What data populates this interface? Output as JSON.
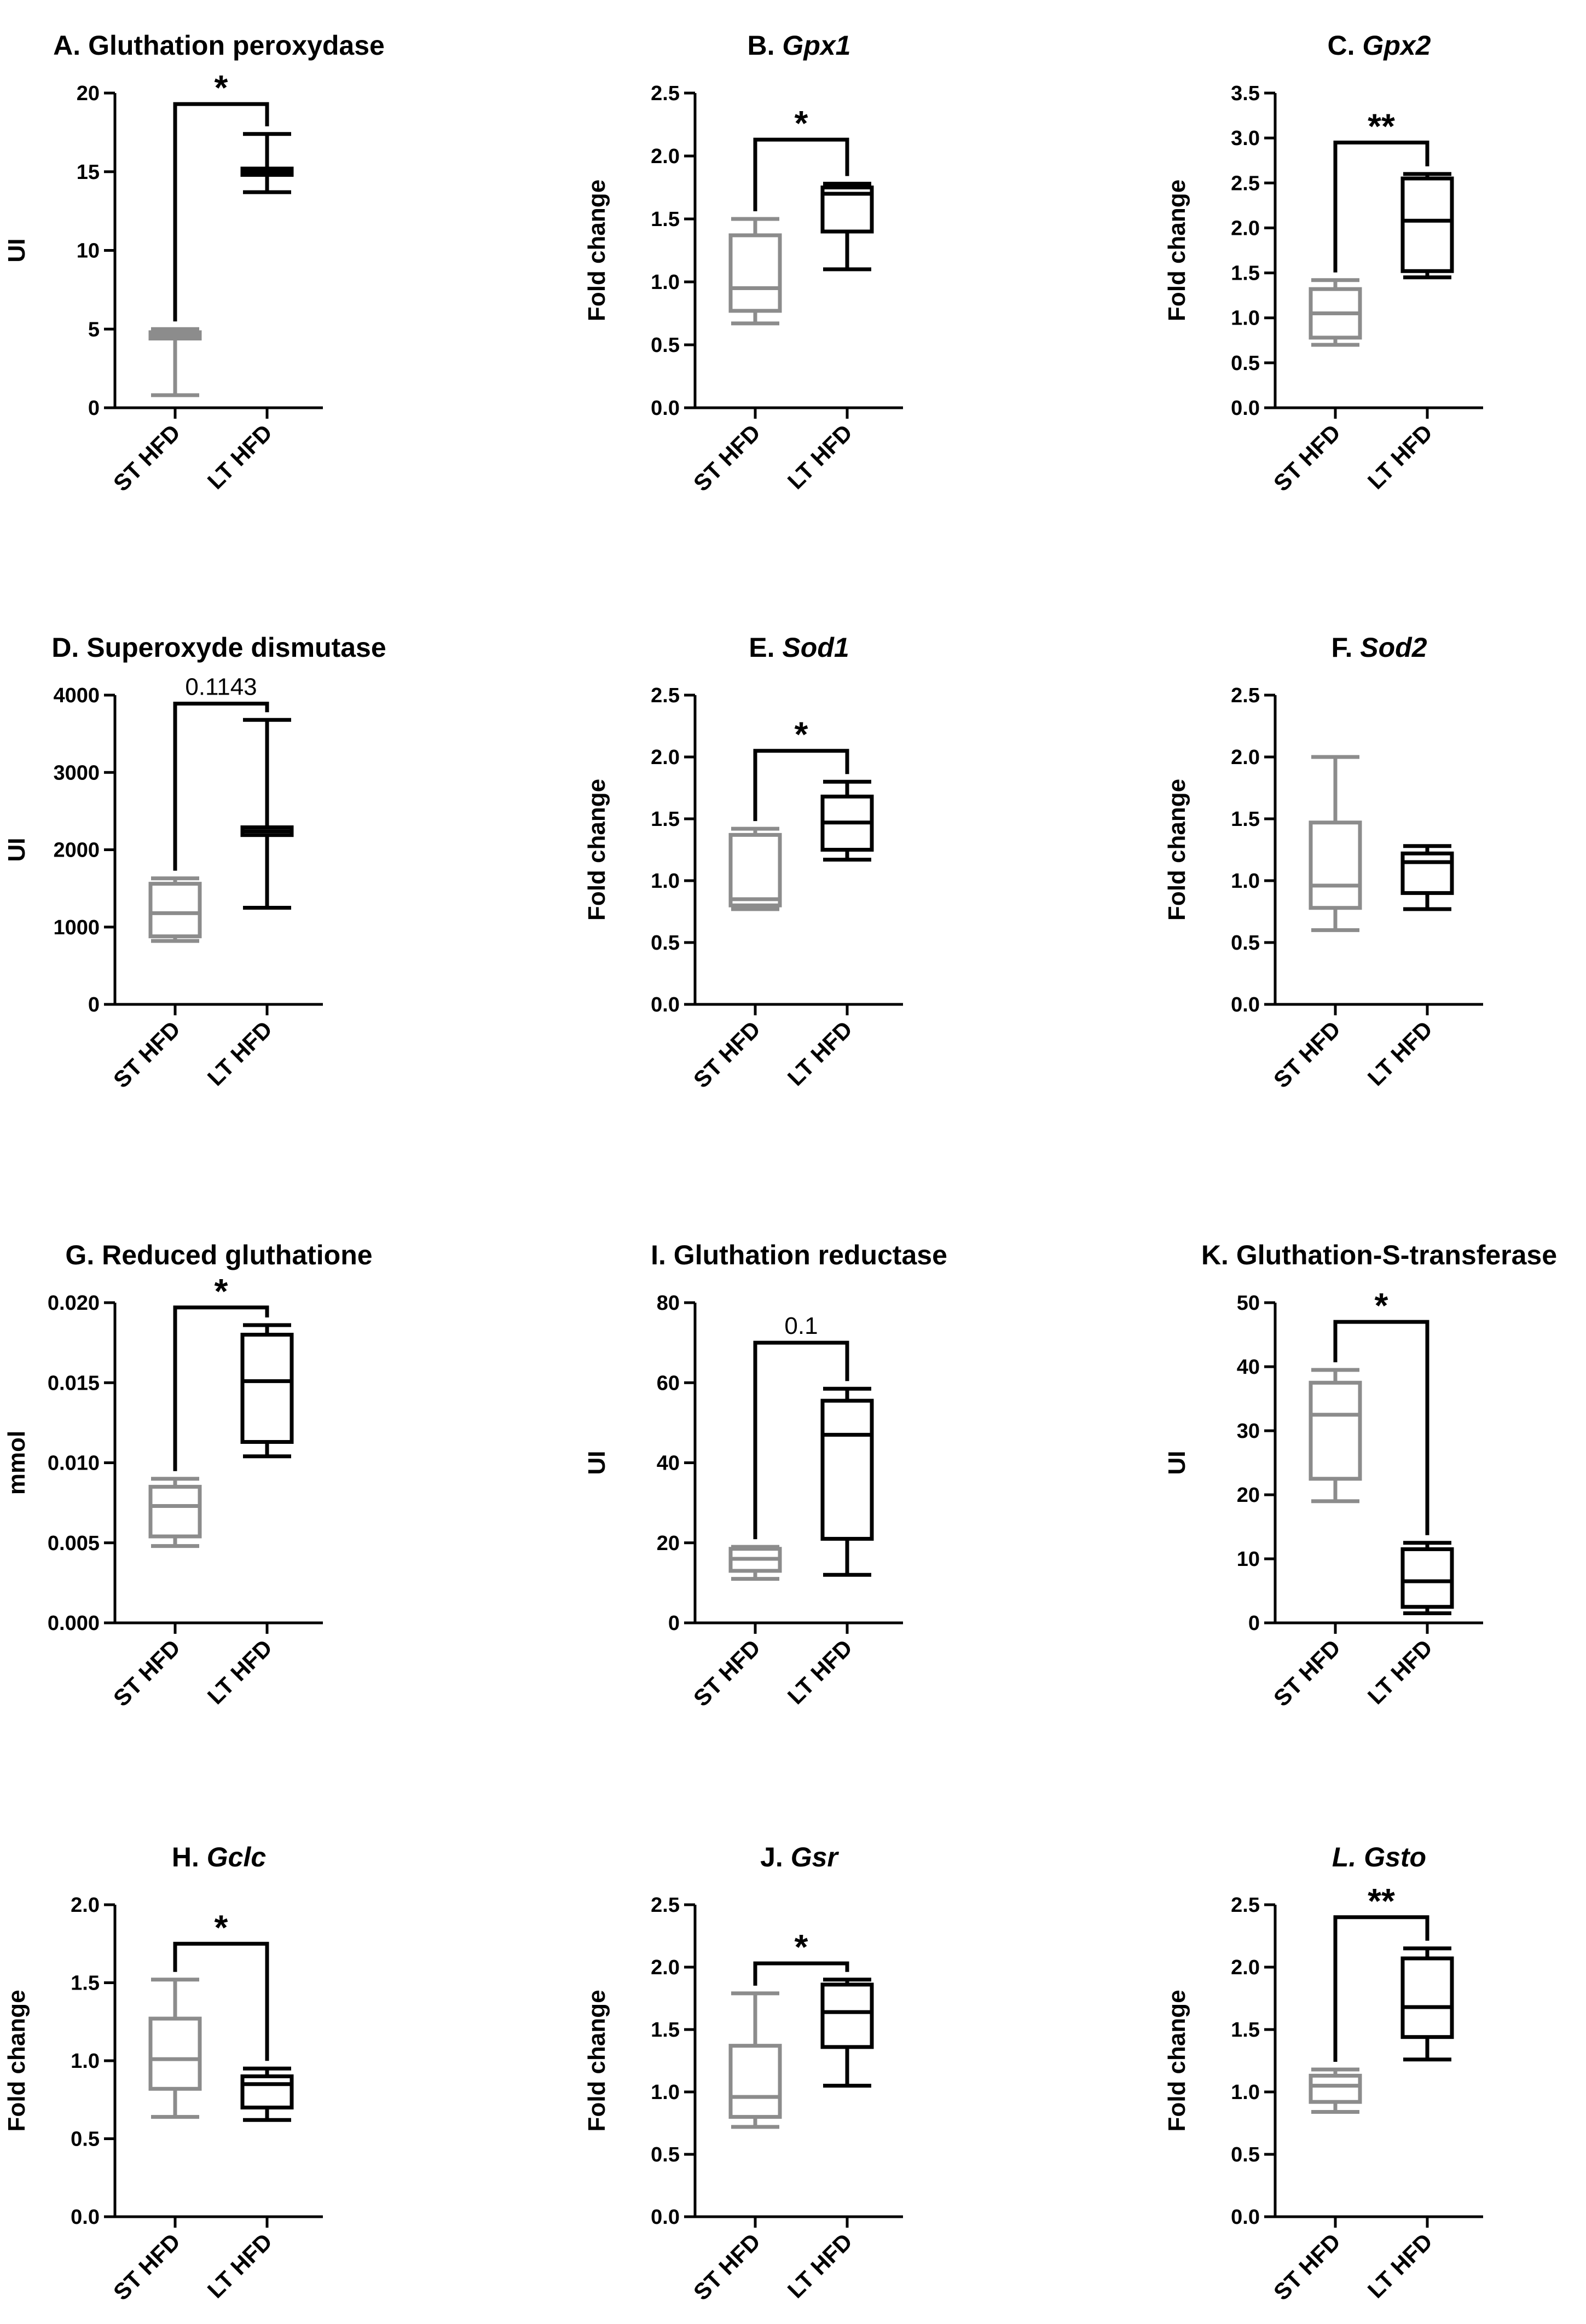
{
  "colors": {
    "st": "#8c8c8c",
    "lt": "#000000",
    "axis": "#000000"
  },
  "chart_data": [
    {
      "type": "box",
      "title_prefix": "A. ",
      "title_main": "Gluthation peroxydase",
      "title_italic": false,
      "ylabel": "UI",
      "ylim": [
        0,
        20
      ],
      "ticks": [
        0,
        5,
        10,
        15,
        20
      ],
      "tick_labels": [
        "0",
        "5",
        "10",
        "15",
        "20"
      ],
      "categories": [
        "ST HFD",
        "LT HFD"
      ],
      "boxes": [
        {
          "name": "ST HFD",
          "min": 0.8,
          "q1": 4.4,
          "median": 4.6,
          "q3": 4.8,
          "max": 5.0
        },
        {
          "name": "LT HFD",
          "min": 13.7,
          "q1": 14.8,
          "median": 15.0,
          "q3": 15.2,
          "max": 17.4
        }
      ],
      "sig": {
        "label": "*",
        "kind": "star",
        "y": 19.3
      }
    },
    {
      "type": "box",
      "title_prefix": "B. ",
      "title_main": "Gpx1",
      "title_italic": true,
      "ylabel": "Fold change",
      "ylim": [
        0,
        2.5
      ],
      "ticks": [
        0,
        0.5,
        1,
        1.5,
        2,
        2.5
      ],
      "tick_labels": [
        "0.0",
        "0.5",
        "1.0",
        "1.5",
        "2.0",
        "2.5"
      ],
      "categories": [
        "ST HFD",
        "LT HFD"
      ],
      "boxes": [
        {
          "name": "ST HFD",
          "min": 0.67,
          "q1": 0.77,
          "median": 0.95,
          "q3": 1.37,
          "max": 1.5
        },
        {
          "name": "LT HFD",
          "min": 1.1,
          "q1": 1.4,
          "median": 1.7,
          "q3": 1.75,
          "max": 1.78
        }
      ],
      "sig": {
        "label": "*",
        "kind": "star",
        "y": 2.13
      }
    },
    {
      "type": "box",
      "title_prefix": "C. ",
      "title_main": "Gpx2",
      "title_italic": true,
      "ylabel": "Fold change",
      "ylim": [
        0,
        3.5
      ],
      "ticks": [
        0,
        0.5,
        1,
        1.5,
        2,
        2.5,
        3,
        3.5
      ],
      "tick_labels": [
        "0.0",
        "0.5",
        "1.0",
        "1.5",
        "2.0",
        "2.5",
        "3.0",
        "3.5"
      ],
      "categories": [
        "ST HFD",
        "LT HFD"
      ],
      "boxes": [
        {
          "name": "ST HFD",
          "min": 0.7,
          "q1": 0.78,
          "median": 1.05,
          "q3": 1.32,
          "max": 1.42
        },
        {
          "name": "LT HFD",
          "min": 1.45,
          "q1": 1.52,
          "median": 2.08,
          "q3": 2.55,
          "max": 2.6
        }
      ],
      "sig": {
        "label": "**",
        "kind": "star",
        "y": 2.95
      }
    },
    {
      "type": "box",
      "title_prefix": "D. ",
      "title_main": "Superoxyde dismutase",
      "title_italic": false,
      "ylabel": "UI",
      "ylim": [
        0,
        4000
      ],
      "ticks": [
        0,
        1000,
        2000,
        3000,
        4000
      ],
      "tick_labels": [
        "0",
        "1000",
        "2000",
        "3000",
        "4000"
      ],
      "categories": [
        "ST HFD",
        "LT HFD"
      ],
      "boxes": [
        {
          "name": "ST HFD",
          "min": 820,
          "q1": 880,
          "median": 1180,
          "q3": 1560,
          "max": 1630
        },
        {
          "name": "LT HFD",
          "min": 1250,
          "q1": 2190,
          "median": 2240,
          "q3": 2290,
          "max": 3680
        }
      ],
      "sig": {
        "label": "0.1143",
        "kind": "value",
        "y": 3890
      }
    },
    {
      "type": "box",
      "title_prefix": "E. ",
      "title_main": "Sod1",
      "title_italic": true,
      "ylabel": "Fold change",
      "ylim": [
        0,
        2.5
      ],
      "ticks": [
        0,
        0.5,
        1,
        1.5,
        2,
        2.5
      ],
      "tick_labels": [
        "0.0",
        "0.5",
        "1.0",
        "1.5",
        "2.0",
        "2.5"
      ],
      "categories": [
        "ST HFD",
        "LT HFD"
      ],
      "boxes": [
        {
          "name": "ST HFD",
          "min": 0.77,
          "q1": 0.8,
          "median": 0.85,
          "q3": 1.37,
          "max": 1.42
        },
        {
          "name": "LT HFD",
          "min": 1.17,
          "q1": 1.25,
          "median": 1.47,
          "q3": 1.68,
          "max": 1.8
        }
      ],
      "sig": {
        "label": "*",
        "kind": "star",
        "y": 2.05
      }
    },
    {
      "type": "box",
      "title_prefix": "F. ",
      "title_main": "Sod2",
      "title_italic": true,
      "ylabel": "Fold change",
      "ylim": [
        0,
        2.5
      ],
      "ticks": [
        0,
        0.5,
        1,
        1.5,
        2,
        2.5
      ],
      "tick_labels": [
        "0.0",
        "0.5",
        "1.0",
        "1.5",
        "2.0",
        "2.5"
      ],
      "categories": [
        "ST HFD",
        "LT HFD"
      ],
      "boxes": [
        {
          "name": "ST HFD",
          "min": 0.6,
          "q1": 0.78,
          "median": 0.96,
          "q3": 1.47,
          "max": 2.0
        },
        {
          "name": "LT HFD",
          "min": 0.77,
          "q1": 0.9,
          "median": 1.15,
          "q3": 1.22,
          "max": 1.28
        }
      ],
      "sig": null
    },
    {
      "type": "box",
      "title_prefix": "G. ",
      "title_main": "Reduced gluthatione",
      "title_italic": false,
      "ylabel": "mmol",
      "ylim": [
        0,
        0.02
      ],
      "ticks": [
        0,
        0.005,
        0.01,
        0.015,
        0.02
      ],
      "tick_labels": [
        "0.000",
        "0.005",
        "0.010",
        "0.015",
        "0.020"
      ],
      "categories": [
        "ST HFD",
        "LT HFD"
      ],
      "boxes": [
        {
          "name": "ST HFD",
          "min": 0.0048,
          "q1": 0.0054,
          "median": 0.0073,
          "q3": 0.0085,
          "max": 0.009
        },
        {
          "name": "LT HFD",
          "min": 0.0104,
          "q1": 0.0113,
          "median": 0.0151,
          "q3": 0.018,
          "max": 0.0186
        }
      ],
      "sig": {
        "label": "*",
        "kind": "star",
        "y": 0.0197
      }
    },
    {
      "type": "box",
      "title_prefix": "I. ",
      "title_main": "Gluthation reductase",
      "title_italic": false,
      "ylabel": "UI",
      "ylim": [
        0,
        80
      ],
      "ticks": [
        0,
        20,
        40,
        60,
        80
      ],
      "tick_labels": [
        "0",
        "20",
        "40",
        "60",
        "80"
      ],
      "categories": [
        "ST HFD",
        "LT HFD"
      ],
      "boxes": [
        {
          "name": "ST HFD",
          "min": 11,
          "q1": 13,
          "median": 16,
          "q3": 18.5,
          "max": 19
        },
        {
          "name": "LT HFD",
          "min": 12,
          "q1": 21,
          "median": 47,
          "q3": 55.5,
          "max": 58.5
        }
      ],
      "sig": {
        "label": "0.1",
        "kind": "value",
        "y": 70
      }
    },
    {
      "type": "box",
      "title_prefix": "K. ",
      "title_main": "Gluthation-S-transferase",
      "title_italic": false,
      "ylabel": "UI",
      "ylim": [
        0,
        50
      ],
      "ticks": [
        0,
        10,
        20,
        30,
        40,
        50
      ],
      "tick_labels": [
        "0",
        "10",
        "20",
        "30",
        "40",
        "50"
      ],
      "categories": [
        "ST HFD",
        "LT HFD"
      ],
      "boxes": [
        {
          "name": "ST HFD",
          "min": 19,
          "q1": 22.5,
          "median": 32.5,
          "q3": 37.5,
          "max": 39.5
        },
        {
          "name": "LT HFD",
          "min": 1.5,
          "q1": 2.5,
          "median": 6.5,
          "q3": 11.5,
          "max": 12.5
        }
      ],
      "sig": {
        "label": "*",
        "kind": "star",
        "y": 47
      }
    },
    {
      "type": "box",
      "title_prefix": "H. ",
      "title_main": "Gclc",
      "title_italic": true,
      "ylabel": "Fold change",
      "ylim": [
        0,
        2
      ],
      "ticks": [
        0,
        0.5,
        1,
        1.5,
        2
      ],
      "tick_labels": [
        "0.0",
        "0.5",
        "1.0",
        "1.5",
        "2.0"
      ],
      "categories": [
        "ST HFD",
        "LT HFD"
      ],
      "boxes": [
        {
          "name": "ST HFD",
          "min": 0.64,
          "q1": 0.82,
          "median": 1.01,
          "q3": 1.27,
          "max": 1.52
        },
        {
          "name": "LT HFD",
          "min": 0.62,
          "q1": 0.7,
          "median": 0.85,
          "q3": 0.9,
          "max": 0.95
        }
      ],
      "sig": {
        "label": "*",
        "kind": "star",
        "y": 1.75
      }
    },
    {
      "type": "box",
      "title_prefix": "J. ",
      "title_main": "Gsr",
      "title_italic": true,
      "ylabel": "Fold change",
      "ylim": [
        0,
        2.5
      ],
      "ticks": [
        0,
        0.5,
        1,
        1.5,
        2,
        2.5
      ],
      "tick_labels": [
        "0.0",
        "0.5",
        "1.0",
        "1.5",
        "2.0",
        "2.5"
      ],
      "categories": [
        "ST HFD",
        "LT HFD"
      ],
      "boxes": [
        {
          "name": "ST HFD",
          "min": 0.72,
          "q1": 0.8,
          "median": 0.96,
          "q3": 1.37,
          "max": 1.79
        },
        {
          "name": "LT HFD",
          "min": 1.05,
          "q1": 1.36,
          "median": 1.64,
          "q3": 1.86,
          "max": 1.9
        }
      ],
      "sig": {
        "label": "*",
        "kind": "star",
        "y": 2.03
      }
    },
    {
      "type": "box",
      "title_prefix": "L. ",
      "title_main": "Gsto",
      "title_italic": true,
      "prefix_italic": true,
      "ylabel": "Fold change",
      "ylim": [
        0,
        2.5
      ],
      "ticks": [
        0,
        0.5,
        1,
        1.5,
        2,
        2.5
      ],
      "tick_labels": [
        "0.0",
        "0.5",
        "1.0",
        "1.5",
        "2.0",
        "2.5"
      ],
      "categories": [
        "ST HFD",
        "LT HFD"
      ],
      "boxes": [
        {
          "name": "ST HFD",
          "min": 0.84,
          "q1": 0.92,
          "median": 1.05,
          "q3": 1.13,
          "max": 1.18
        },
        {
          "name": "LT HFD",
          "min": 1.26,
          "q1": 1.44,
          "median": 1.68,
          "q3": 2.07,
          "max": 2.15
        }
      ],
      "sig": {
        "label": "**",
        "kind": "star",
        "y": 2.4
      }
    }
  ]
}
